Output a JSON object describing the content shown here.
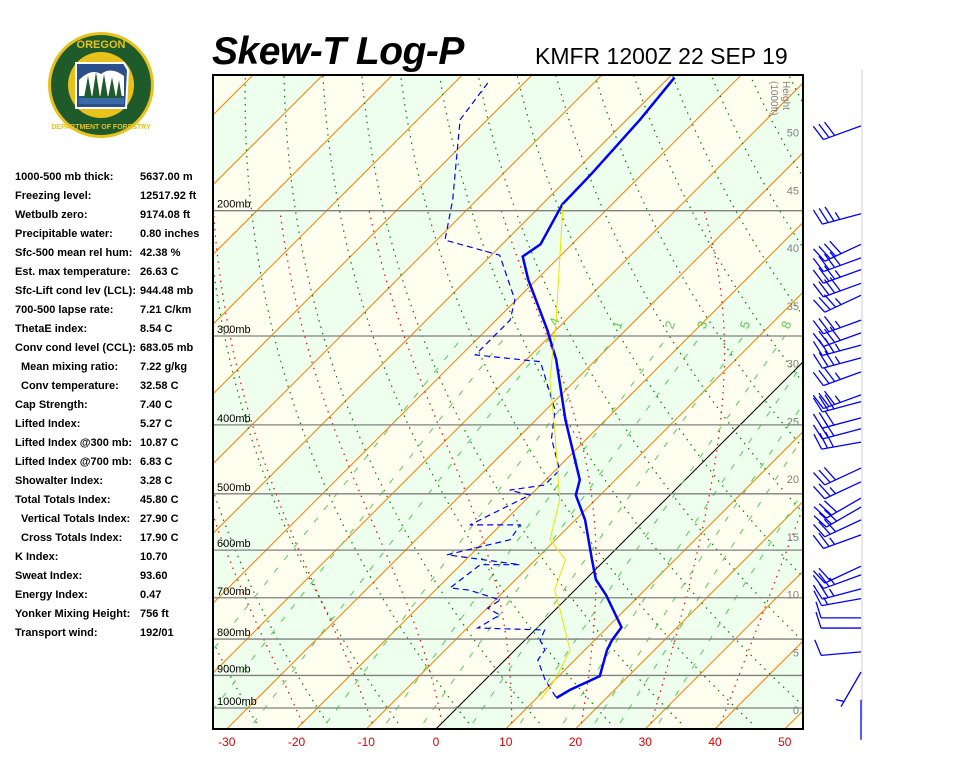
{
  "header": {
    "title": "Skew-T Log-P",
    "station": "KMFR 1200Z 22 SEP 19"
  },
  "logo": {
    "text_top": "OREGON",
    "text_bottom": "DEPARTMENT OF FORESTRY",
    "colors": {
      "ring": "#1f5a2a",
      "gold": "#e8c21a"
    }
  },
  "stats": [
    {
      "label": "1000-500 mb thick:",
      "value": "5637.00 m"
    },
    {
      "label": "Freezing level:",
      "value": "12517.92 ft"
    },
    {
      "label": "Wetbulb zero:",
      "value": "9174.08 ft"
    },
    {
      "label": "Precipitable water:",
      "value": "0.80 inches"
    },
    {
      "label": "Sfc-500 mean rel hum:",
      "value": "42.38 %"
    },
    {
      "label": "Est. max temperature:",
      "value": "26.63 C"
    },
    {
      "label": "Sfc-Lift cond lev (LCL):",
      "value": "944.48 mb"
    },
    {
      "label": "700-500 lapse rate:",
      "value": "7.21 C/km"
    },
    {
      "label": "ThetaE index:",
      "value": "8.54 C"
    },
    {
      "label": "Conv cond level (CCL):",
      "value": "683.05 mb"
    },
    {
      "label": "Mean mixing ratio:",
      "value": "7.22 g/kg",
      "indent": true
    },
    {
      "label": "Conv temperature:",
      "value": "32.58 C",
      "indent": true
    },
    {
      "label": "Cap Strength:",
      "value": "7.40 C"
    },
    {
      "label": "Lifted Index:",
      "value": "5.27 C"
    },
    {
      "label": "Lifted Index @300 mb:",
      "value": "10.87 C"
    },
    {
      "label": "Lifted Index @700 mb:",
      "value": "6.83 C"
    },
    {
      "label": "Showalter Index:",
      "value": "3.28 C"
    },
    {
      "label": "Total Totals Index:",
      "value": "45.80 C"
    },
    {
      "label": "Vertical Totals Index:",
      "value": "27.90 C",
      "indent": true
    },
    {
      "label": "Cross Totals Index:",
      "value": "17.90 C",
      "indent": true
    },
    {
      "label": "K Index:",
      "value": "10.70"
    },
    {
      "label": "Sweat Index:",
      "value": "93.60"
    },
    {
      "label": "Energy Index:",
      "value": "0.47"
    },
    {
      "label": "Yonker Mixing Height:",
      "value": "756 ft"
    },
    {
      "label": "Transport wind:",
      "value": "192/01"
    }
  ],
  "chart_data": {
    "type": "line",
    "x_axis": {
      "ticks": [
        -30,
        -20,
        -10,
        0,
        10,
        20,
        30,
        40,
        50
      ],
      "range": [
        -33,
        51
      ],
      "color": "#e00000"
    },
    "y_axis": {
      "scale": "log",
      "range": [
        1000,
        130
      ],
      "pressure_levels": [
        200,
        300,
        400,
        500,
        600,
        700,
        800,
        900,
        1000
      ],
      "pressure_labels": [
        "200mb",
        "300mb",
        "400mb",
        "500mb",
        "600mb",
        "700mb",
        "800mb",
        "900mb",
        "1000mb"
      ]
    },
    "height_axis": {
      "label": "Height",
      "unit": "(1000ft)",
      "ticks": [
        0,
        5,
        10,
        15,
        20,
        25,
        30,
        35,
        40,
        45,
        50
      ]
    },
    "skew_deg": 45,
    "mixing_ratio_lines": [
      0.1,
      0.2,
      0.4,
      1,
      2,
      3,
      5,
      8,
      12,
      16,
      20,
      28
    ],
    "mixing_ratio_labels": [
      ".4",
      "1",
      "2",
      "3",
      "5",
      "8"
    ],
    "mixing_ratio_label_values": [
      0.4,
      1,
      2,
      3,
      5,
      8
    ],
    "colors": {
      "temperature": "#0000ff",
      "dewpoint": "#0000ff",
      "parcel": "#e6e600",
      "isotherm": "#ff8000",
      "zero_isotherm": "#000000",
      "dry_adiabat": "#008000",
      "moist_adiabat": "#ff0000",
      "mixing_ratio": "#55cc55",
      "band_a": "#fffff0",
      "band_b": "#eeffee"
    },
    "series": [
      {
        "key": "temperature",
        "style": "solid",
        "points": [
          [
            968,
            12.8
          ],
          [
            943,
            13.6
          ],
          [
            902,
            15.9
          ],
          [
            829,
            13.2
          ],
          [
            803,
            12.5
          ],
          [
            770,
            12.0
          ],
          [
            694,
            5.2
          ],
          [
            660,
            1.5
          ],
          [
            619,
            -1.9
          ],
          [
            544,
            -8.6
          ],
          [
            502,
            -13.5
          ],
          [
            478,
            -15.1
          ],
          [
            394,
            -25.7
          ],
          [
            324,
            -35.7
          ],
          [
            294,
            -41.3
          ],
          [
            250,
            -51.2
          ],
          [
            232,
            -55.3
          ],
          [
            223,
            -54.5
          ],
          [
            196,
            -57.1
          ],
          [
            178,
            -57.3
          ],
          [
            149,
            -58.1
          ],
          [
            130,
            -59.2
          ]
        ]
      },
      {
        "key": "dewpoint",
        "style": "dashed",
        "points": [
          [
            965,
            12.6
          ],
          [
            913,
            8.6
          ],
          [
            856,
            4.7
          ],
          [
            829,
            4.3
          ],
          [
            803,
            2.2
          ],
          [
            777,
            1.4
          ],
          [
            772,
            -8.5
          ],
          [
            740,
            -7.2
          ],
          [
            724,
            -9.9
          ],
          [
            705,
            -9.3
          ],
          [
            683,
            -15.1
          ],
          [
            678,
            -18.2
          ],
          [
            629,
            -17.2
          ],
          [
            629,
            -11.5
          ],
          [
            609,
            -23.4
          ],
          [
            580,
            -16.5
          ],
          [
            553,
            -17.2
          ],
          [
            553,
            -24.4
          ],
          [
            502,
            -20.1
          ],
          [
            494,
            -23.7
          ],
          [
            486,
            -19.4
          ],
          [
            463,
            -19.4
          ],
          [
            418,
            -25.1
          ],
          [
            381,
            -28.7
          ],
          [
            326,
            -37.7
          ],
          [
            319,
            -48.0
          ],
          [
            285,
            -48.0
          ],
          [
            267,
            -50.2
          ],
          [
            231,
            -58.8
          ],
          [
            223,
            -66.0
          ],
          [
            220,
            -68.8
          ],
          [
            193,
            -73.5
          ],
          [
            149,
            -83.9
          ],
          [
            131,
            -85.3
          ]
        ]
      },
      {
        "key": "parcel",
        "style": "solid",
        "points": [
          [
            974,
            10.8
          ],
          [
            913,
            10.0
          ],
          [
            829,
            7.9
          ],
          [
            728,
            0.7
          ],
          [
            683,
            -2.9
          ],
          [
            619,
            -5.7
          ],
          [
            580,
            -10.8
          ],
          [
            510,
            -15.1
          ],
          [
            407,
            -25.8
          ],
          [
            346,
            -33.7
          ],
          [
            285,
            -41.4
          ],
          [
            196,
            -57.0
          ]
        ]
      }
    ],
    "wind_barbs": [
      {
        "p": 152,
        "dir": 250,
        "spd": 30
      },
      {
        "p": 202,
        "dir": 255,
        "spd": 35
      },
      {
        "p": 223,
        "dir": 245,
        "spd": 40
      },
      {
        "p": 233,
        "dir": 250,
        "spd": 40
      },
      {
        "p": 242,
        "dir": 250,
        "spd": 35
      },
      {
        "p": 253,
        "dir": 250,
        "spd": 40
      },
      {
        "p": 263,
        "dir": 245,
        "spd": 35
      },
      {
        "p": 285,
        "dir": 250,
        "spd": 35
      },
      {
        "p": 297,
        "dir": 250,
        "spd": 40
      },
      {
        "p": 309,
        "dir": 255,
        "spd": 35
      },
      {
        "p": 322,
        "dir": 255,
        "spd": 35
      },
      {
        "p": 337,
        "dir": 250,
        "spd": 35
      },
      {
        "p": 363,
        "dir": 250,
        "spd": 35
      },
      {
        "p": 371,
        "dir": 255,
        "spd": 30
      },
      {
        "p": 391,
        "dir": 255,
        "spd": 30
      },
      {
        "p": 405,
        "dir": 255,
        "spd": 30
      },
      {
        "p": 423,
        "dir": 260,
        "spd": 30
      },
      {
        "p": 460,
        "dir": 245,
        "spd": 30
      },
      {
        "p": 481,
        "dir": 245,
        "spd": 25
      },
      {
        "p": 507,
        "dir": 240,
        "spd": 30
      },
      {
        "p": 522,
        "dir": 240,
        "spd": 30
      },
      {
        "p": 544,
        "dir": 245,
        "spd": 30
      },
      {
        "p": 571,
        "dir": 250,
        "spd": 25
      },
      {
        "p": 632,
        "dir": 245,
        "spd": 20
      },
      {
        "p": 650,
        "dir": 250,
        "spd": 25
      },
      {
        "p": 680,
        "dir": 255,
        "spd": 25
      },
      {
        "p": 702,
        "dir": 260,
        "spd": 15
      },
      {
        "p": 747,
        "dir": 270,
        "spd": 10
      },
      {
        "p": 772,
        "dir": 270,
        "spd": 10
      },
      {
        "p": 834,
        "dir": 265,
        "spd": 10
      },
      {
        "p": 890,
        "dir": 210,
        "spd": 5
      },
      {
        "p": 974,
        "dir": 180,
        "spd": 0
      }
    ]
  }
}
